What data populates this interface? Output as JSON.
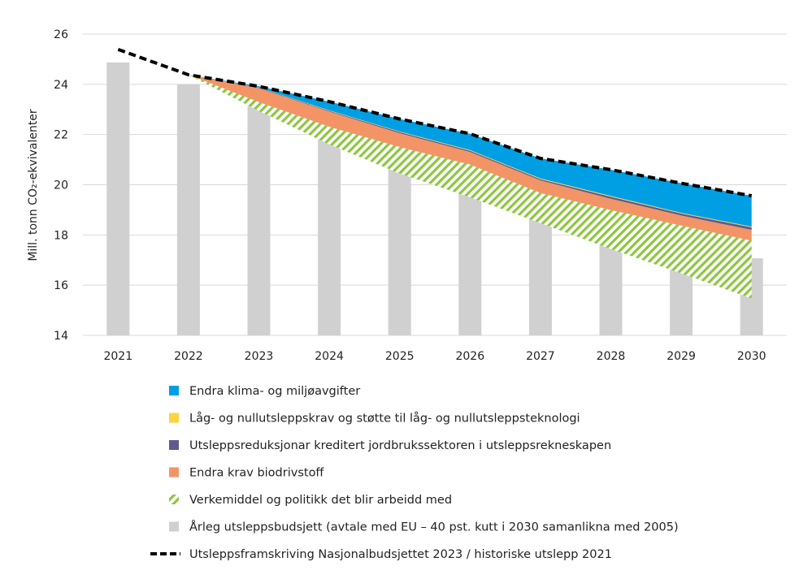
{
  "chart_data": {
    "type": "area",
    "ylabel": "Mill. tonn CO₂-ekvivalenter",
    "ylim": [
      14,
      26
    ],
    "yticks": [
      14,
      16,
      18,
      20,
      22,
      24,
      26
    ],
    "grid": true,
    "legend_placement": "bottom",
    "categories": [
      "2021",
      "2022",
      "2023",
      "2024",
      "2025",
      "2026",
      "2027",
      "2028",
      "2029",
      "2030"
    ],
    "bars": {
      "name": "Årleg utsleppsbudsjett (avtale med EU – 40 pst. kutt i 2030 samanlikna med 2005)",
      "color": "#d0d0d0",
      "values": [
        24.87,
        24.0,
        23.15,
        22.28,
        21.4,
        20.53,
        19.69,
        18.82,
        17.97,
        17.07
      ]
    },
    "line": {
      "name": "Utsleppsframskriving Nasjonalbudsjettet 2023 / historiske utslepp 2021",
      "color": "#000000",
      "style": "dashed",
      "values": [
        25.39,
        24.38,
        23.92,
        23.31,
        22.62,
        22.03,
        21.05,
        20.6,
        20.06,
        19.56
      ]
    },
    "stack_note_order": "layers subtracted downward from the line, top to bottom, from 2022",
    "series": [
      {
        "name": "Endra klima- og miljøavgifter",
        "color": "#009fe3",
        "values": [
          null,
          0,
          0.05,
          0.35,
          0.5,
          0.65,
          0.8,
          1.05,
          1.18,
          1.23
        ]
      },
      {
        "name": "Låg- og nullutsleppskrav og støtte til låg- og nullutsleppsteknologi",
        "color": "#ffd23f",
        "values": [
          null,
          0,
          0.01,
          0.02,
          0.02,
          0.03,
          0.03,
          0.03,
          0.03,
          0.03
        ]
      },
      {
        "name": "Utsleppsreduksjonar kreditert jordbrukssektoren i utsleppsrekneskapen",
        "color": "#5f5a8e",
        "values": [
          null,
          0,
          0.02,
          0.03,
          0.05,
          0.05,
          0.05,
          0.08,
          0.08,
          0.1
        ]
      },
      {
        "name": "Endra krav biodrivstoff",
        "color": "#f39467",
        "values": [
          null,
          0,
          0.55,
          0.6,
          0.55,
          0.5,
          0.5,
          0.45,
          0.4,
          0.43
        ]
      },
      {
        "name": "Verkemiddel og politikk det blir arbeidd med",
        "color": "#8dc63f",
        "pattern": "diagonal-hatch",
        "values": [
          null,
          0,
          0.35,
          0.7,
          1.05,
          1.3,
          1.2,
          1.55,
          1.9,
          2.3
        ]
      }
    ]
  }
}
